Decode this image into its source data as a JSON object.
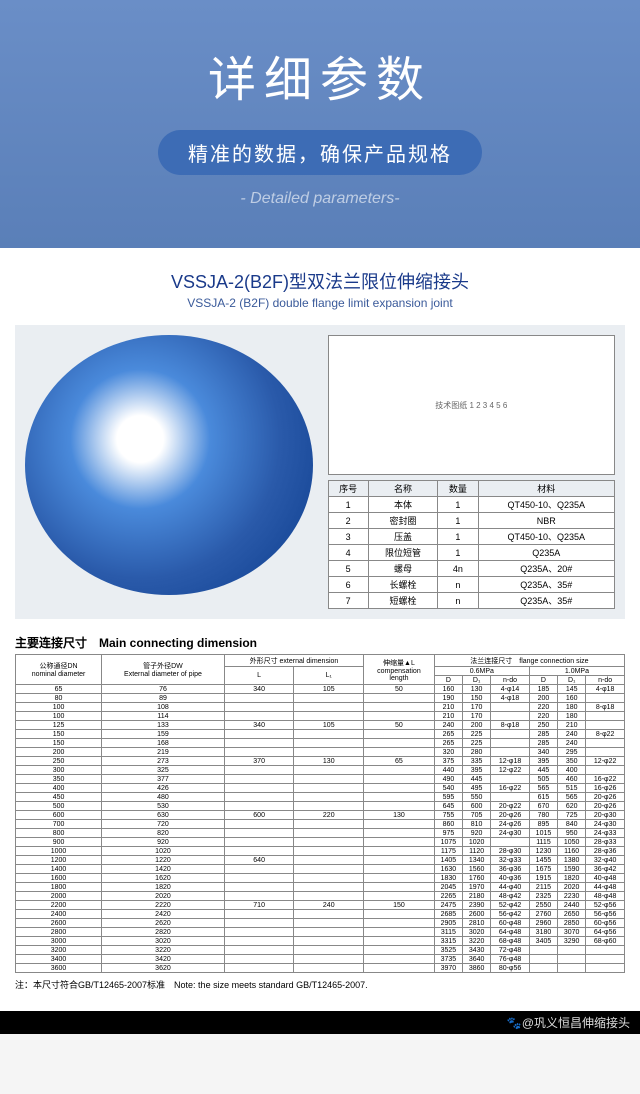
{
  "header": {
    "title": "详细参数",
    "sub": "精准的数据，确保产品规格",
    "en": "- Detailed parameters-"
  },
  "product": {
    "title": "VSSJA-2(B2F)型双法兰限位伸缩接头",
    "sub": "VSSJA-2 (B2F) double flange limit expansion joint",
    "diagram_label": "技术图纸 1 2 3 4 5 6"
  },
  "parts": {
    "headers": [
      "序号",
      "名称",
      "数量",
      "材料"
    ],
    "rows": [
      [
        "1",
        "本体",
        "1",
        "QT450-10、Q235A"
      ],
      [
        "2",
        "密封圈",
        "1",
        "NBR"
      ],
      [
        "3",
        "压盖",
        "1",
        "QT450-10、Q235A"
      ],
      [
        "4",
        "限位短管",
        "1",
        "Q235A"
      ],
      [
        "5",
        "螺母",
        "4n",
        "Q235A、20#"
      ],
      [
        "6",
        "长螺栓",
        "n",
        "Q235A、35#"
      ],
      [
        "7",
        "短螺栓",
        "n",
        "Q235A、35#"
      ]
    ]
  },
  "main": {
    "title": "主要连接尺寸　Main connecting dimension",
    "h1": [
      "公称通径DN\nnominal diameter",
      "管子外径DW\nExternal diameter of pipe",
      "外形尺寸\nexternal dimension",
      "伸缩量▲L\ncompensation\nlength",
      "法兰连接尺寸　flange connection size"
    ],
    "h1b": [
      "L",
      "L₁",
      "0.6MPa",
      "1.0MPa"
    ],
    "h1c": [
      "D",
      "D₁",
      "n-do",
      "D",
      "D₁",
      "n-do"
    ],
    "rows": [
      [
        "65",
        "76",
        "340",
        "105",
        "50",
        "160",
        "130",
        "4-φ14",
        "185",
        "145",
        "4-φ18"
      ],
      [
        "80",
        "89",
        "",
        "",
        "",
        "190",
        "150",
        "4-φ18",
        "200",
        "160",
        ""
      ],
      [
        "100",
        "108",
        "",
        "",
        "",
        "210",
        "170",
        "",
        "220",
        "180",
        "8-φ18"
      ],
      [
        "100",
        "114",
        "",
        "",
        "",
        "210",
        "170",
        "",
        "220",
        "180",
        ""
      ],
      [
        "125",
        "133",
        "340",
        "105",
        "50",
        "240",
        "200",
        "8-φ18",
        "250",
        "210",
        ""
      ],
      [
        "150",
        "159",
        "",
        "",
        "",
        "265",
        "225",
        "",
        "285",
        "240",
        "8-φ22"
      ],
      [
        "150",
        "168",
        "",
        "",
        "",
        "265",
        "225",
        "",
        "285",
        "240",
        ""
      ],
      [
        "200",
        "219",
        "",
        "",
        "",
        "320",
        "280",
        "",
        "340",
        "295",
        ""
      ],
      [
        "250",
        "273",
        "370",
        "130",
        "65",
        "375",
        "335",
        "12-φ18",
        "395",
        "350",
        "12-φ22"
      ],
      [
        "300",
        "325",
        "",
        "",
        "",
        "440",
        "395",
        "12-φ22",
        "445",
        "400",
        ""
      ],
      [
        "350",
        "377",
        "",
        "",
        "",
        "490",
        "445",
        "",
        "505",
        "460",
        "16-φ22"
      ],
      [
        "400",
        "426",
        "",
        "",
        "",
        "540",
        "495",
        "16-φ22",
        "565",
        "515",
        "16-φ26"
      ],
      [
        "450",
        "480",
        "",
        "",
        "",
        "595",
        "550",
        "",
        "615",
        "565",
        "20-φ26"
      ],
      [
        "500",
        "530",
        "",
        "",
        "",
        "645",
        "600",
        "20-φ22",
        "670",
        "620",
        "20-φ26"
      ],
      [
        "600",
        "630",
        "600",
        "220",
        "130",
        "755",
        "705",
        "20-φ26",
        "780",
        "725",
        "20-φ30"
      ],
      [
        "700",
        "720",
        "",
        "",
        "",
        "860",
        "810",
        "24-φ26",
        "895",
        "840",
        "24-φ30"
      ],
      [
        "800",
        "820",
        "",
        "",
        "",
        "975",
        "920",
        "24-φ30",
        "1015",
        "950",
        "24-φ33"
      ],
      [
        "900",
        "920",
        "",
        "",
        "",
        "1075",
        "1020",
        "",
        "1115",
        "1050",
        "28-φ33"
      ],
      [
        "1000",
        "1020",
        "",
        "",
        "",
        "1175",
        "1120",
        "28-φ30",
        "1230",
        "1160",
        "28-φ36"
      ],
      [
        "1200",
        "1220",
        "640",
        "",
        "",
        "1405",
        "1340",
        "32-φ33",
        "1455",
        "1380",
        "32-φ40"
      ],
      [
        "1400",
        "1420",
        "",
        "",
        "",
        "1630",
        "1560",
        "36-φ36",
        "1675",
        "1590",
        "36-φ42"
      ],
      [
        "1600",
        "1620",
        "",
        "",
        "",
        "1830",
        "1760",
        "40-φ36",
        "1915",
        "1820",
        "40-φ48"
      ],
      [
        "1800",
        "1820",
        "",
        "",
        "",
        "2045",
        "1970",
        "44-φ40",
        "2115",
        "2020",
        "44-φ48"
      ],
      [
        "2000",
        "2020",
        "",
        "",
        "",
        "2265",
        "2180",
        "48-φ42",
        "2325",
        "2230",
        "48-φ48"
      ],
      [
        "2200",
        "2220",
        "710",
        "240",
        "150",
        "2475",
        "2390",
        "52-φ42",
        "2550",
        "2440",
        "52-φ56"
      ],
      [
        "2400",
        "2420",
        "",
        "",
        "",
        "2685",
        "2600",
        "56-φ42",
        "2760",
        "2650",
        "56-φ56"
      ],
      [
        "2600",
        "2620",
        "",
        "",
        "",
        "2905",
        "2810",
        "60-φ48",
        "2960",
        "2850",
        "60-φ56"
      ],
      [
        "2800",
        "2820",
        "",
        "",
        "",
        "3115",
        "3020",
        "64-φ48",
        "3180",
        "3070",
        "64-φ56"
      ],
      [
        "3000",
        "3020",
        "",
        "",
        "",
        "3315",
        "3220",
        "68-φ48",
        "3405",
        "3290",
        "68-φ60"
      ],
      [
        "3200",
        "3220",
        "",
        "",
        "",
        "3525",
        "3430",
        "72-φ48",
        "",
        "",
        ""
      ],
      [
        "3400",
        "3420",
        "",
        "",
        "",
        "3735",
        "3640",
        "76-φ48",
        "",
        "",
        ""
      ],
      [
        "3600",
        "3620",
        "",
        "",
        "",
        "3970",
        "3860",
        "80-φ56",
        "",
        "",
        ""
      ]
    ],
    "note": "注：本尺寸符合GB/T12465-2007标准　Note: the size meets standard GB/T12465-2007."
  },
  "footer": {
    "text": "🐾@巩义恒昌伸缩接头"
  }
}
